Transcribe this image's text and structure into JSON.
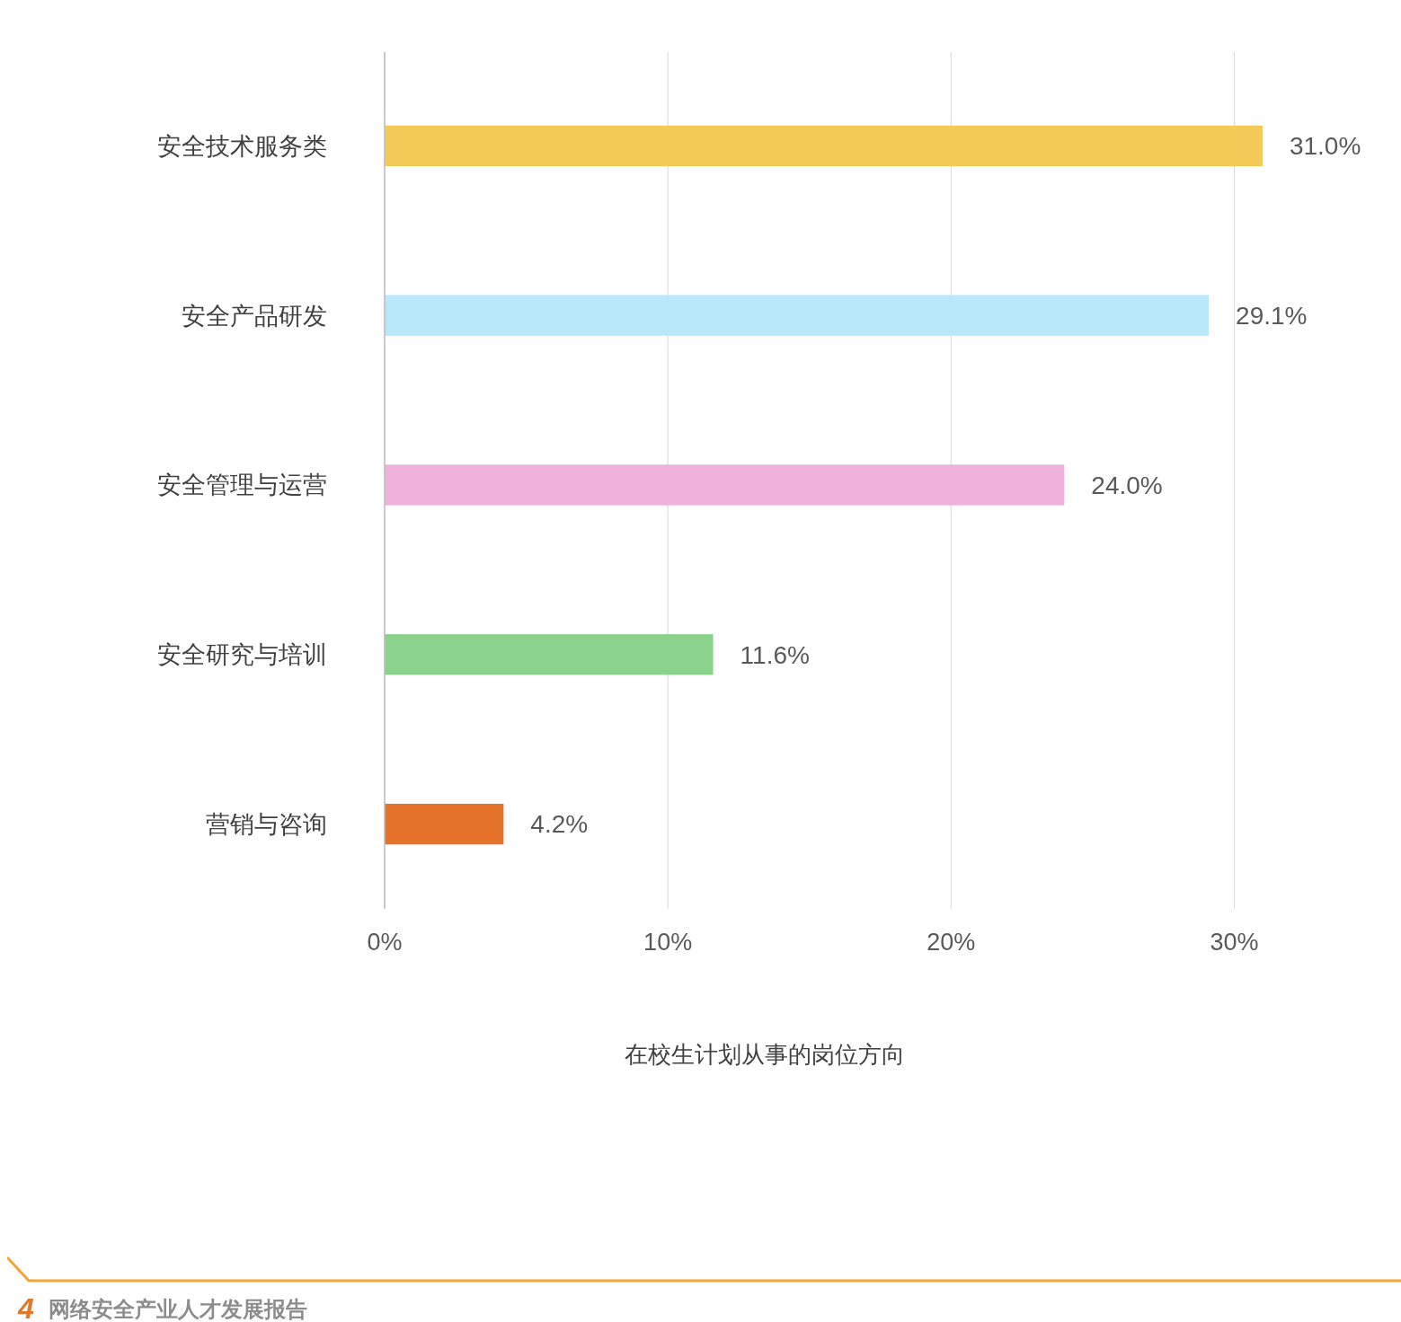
{
  "chart_data": {
    "type": "bar",
    "orientation": "horizontal",
    "xlabel": "在校生计划从事的岗位方向",
    "categories": [
      "安全技术服务类",
      "安全产品研发",
      "安全管理与运营",
      "安全研究与培训",
      "营销与咨询"
    ],
    "values": [
      31.0,
      29.1,
      24.0,
      11.6,
      4.2
    ],
    "value_labels": [
      "31.0%",
      "29.1%",
      "24.0%",
      "11.6%",
      "4.2%"
    ],
    "colors": [
      "#f2ca55",
      "#b8e8f9",
      "#eeb2dc",
      "#8bd28c",
      "#e5722a"
    ],
    "xlim": [
      0,
      35
    ],
    "xticks": [
      {
        "value": 0,
        "label": "0%"
      },
      {
        "value": 10,
        "label": "10%"
      },
      {
        "value": 20,
        "label": "20%"
      },
      {
        "value": 30,
        "label": "30%"
      }
    ],
    "grid": "x",
    "annotations": [
      "4",
      "网络安全产业人才发展报告"
    ]
  }
}
